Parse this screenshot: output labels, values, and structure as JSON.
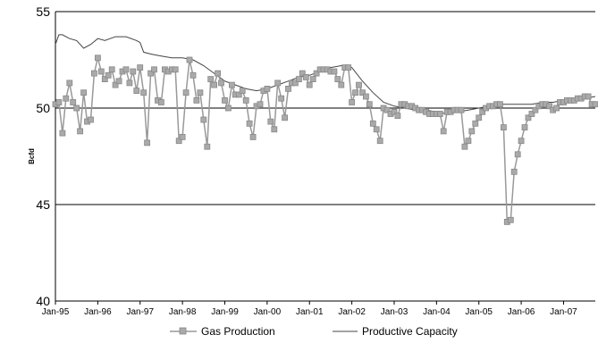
{
  "chart_data": {
    "type": "line",
    "title": "",
    "xlabel": "",
    "ylabel": "Bcfd",
    "ylim": [
      40,
      55
    ],
    "yticks": [
      40,
      45,
      50,
      55
    ],
    "xlim": [
      "1995-01",
      "2007-10"
    ],
    "xtick_labels": [
      "Jan-95",
      "Jan-96",
      "Jan-97",
      "Jan-98",
      "Jan-99",
      "Jan-00",
      "Jan-01",
      "Jan-02",
      "Jan-03",
      "Jan-04",
      "Jan-05",
      "Jan-06",
      "Jan-07"
    ],
    "gridlines_y": [
      45,
      50,
      55
    ],
    "legend_position": "bottom",
    "colors": {
      "production": "#999999",
      "capacity": "#444444",
      "grid": "#000000"
    },
    "series": [
      {
        "name": "Gas Production",
        "marker": "square",
        "x": [
          "1995-01",
          "1995-02",
          "1995-03",
          "1995-04",
          "1995-05",
          "1995-06",
          "1995-07",
          "1995-08",
          "1995-09",
          "1995-10",
          "1995-11",
          "1995-12",
          "1996-01",
          "1996-02",
          "1996-03",
          "1996-04",
          "1996-05",
          "1996-06",
          "1996-07",
          "1996-08",
          "1996-09",
          "1996-10",
          "1996-11",
          "1996-12",
          "1997-01",
          "1997-02",
          "1997-03",
          "1997-04",
          "1997-05",
          "1997-06",
          "1997-07",
          "1997-08",
          "1997-09",
          "1997-10",
          "1997-11",
          "1997-12",
          "1998-01",
          "1998-02",
          "1998-03",
          "1998-04",
          "1998-05",
          "1998-06",
          "1998-07",
          "1998-08",
          "1998-09",
          "1998-10",
          "1998-11",
          "1998-12",
          "1999-01",
          "1999-02",
          "1999-03",
          "1999-04",
          "1999-05",
          "1999-06",
          "1999-07",
          "1999-08",
          "1999-09",
          "1999-10",
          "1999-11",
          "1999-12",
          "2000-01",
          "2000-02",
          "2000-03",
          "2000-04",
          "2000-05",
          "2000-06",
          "2000-07",
          "2000-08",
          "2000-09",
          "2000-10",
          "2000-11",
          "2000-12",
          "2001-01",
          "2001-02",
          "2001-03",
          "2001-04",
          "2001-05",
          "2001-06",
          "2001-07",
          "2001-08",
          "2001-09",
          "2001-10",
          "2001-11",
          "2001-12",
          "2002-01",
          "2002-02",
          "2002-03",
          "2002-04",
          "2002-05",
          "2002-06",
          "2002-07",
          "2002-08",
          "2002-09",
          "2002-10",
          "2002-11",
          "2002-12",
          "2003-01",
          "2003-02",
          "2003-03",
          "2003-04",
          "2003-05",
          "2003-06",
          "2003-07",
          "2003-08",
          "2003-09",
          "2003-10",
          "2003-11",
          "2003-12",
          "2004-01",
          "2004-02",
          "2004-03",
          "2004-04",
          "2004-05",
          "2004-06",
          "2004-07",
          "2004-08",
          "2004-09",
          "2004-10",
          "2004-11",
          "2004-12",
          "2005-01",
          "2005-02",
          "2005-03",
          "2005-04",
          "2005-05",
          "2005-06",
          "2005-07",
          "2005-08",
          "2005-09",
          "2005-10",
          "2005-11",
          "2005-12",
          "2006-01",
          "2006-02",
          "2006-03",
          "2006-04",
          "2006-05",
          "2006-06",
          "2006-07",
          "2006-08",
          "2006-09",
          "2006-10",
          "2006-11",
          "2006-12",
          "2007-01",
          "2007-02",
          "2007-03",
          "2007-04",
          "2007-05",
          "2007-06",
          "2007-07",
          "2007-08",
          "2007-09",
          "2007-10"
        ],
        "values": [
          50.2,
          50.3,
          48.7,
          50.5,
          51.3,
          50.3,
          50.0,
          48.8,
          50.8,
          49.3,
          49.4,
          51.8,
          52.6,
          51.9,
          51.5,
          51.7,
          52.0,
          51.2,
          51.4,
          51.9,
          52.0,
          51.3,
          51.9,
          50.9,
          52.1,
          50.8,
          48.2,
          51.8,
          52.0,
          50.4,
          50.3,
          52.0,
          51.9,
          52.0,
          52.0,
          48.3,
          48.5,
          50.8,
          52.5,
          51.7,
          50.4,
          50.8,
          49.4,
          48.0,
          51.5,
          51.2,
          51.8,
          51.3,
          50.4,
          50.0,
          51.2,
          50.7,
          50.7,
          50.9,
          50.4,
          49.2,
          48.5,
          50.1,
          50.2,
          50.9,
          51.0,
          49.3,
          48.9,
          51.3,
          50.5,
          49.5,
          51.0,
          51.3,
          51.3,
          51.5,
          51.8,
          51.6,
          51.2,
          51.5,
          51.8,
          52.0,
          52.0,
          52.0,
          51.9,
          51.9,
          51.5,
          51.2,
          52.1,
          52.1,
          50.3,
          50.8,
          51.2,
          50.8,
          50.6,
          50.2,
          49.2,
          48.9,
          48.3,
          50.0,
          49.9,
          49.7,
          49.8,
          49.6,
          50.2,
          50.2,
          50.1,
          50.1,
          50.0,
          49.9,
          49.9,
          49.8,
          49.7,
          49.7,
          49.7,
          49.7,
          48.8,
          49.8,
          49.8,
          49.9,
          49.9,
          49.9,
          48.0,
          48.3,
          48.8,
          49.2,
          49.5,
          49.8,
          50.0,
          50.1,
          50.1,
          50.2,
          50.2,
          49.0,
          44.1,
          44.2,
          46.7,
          47.6,
          48.3,
          49.0,
          49.5,
          49.7,
          49.9,
          50.1,
          50.2,
          50.2,
          50.1,
          49.9,
          50.0,
          50.3,
          50.3,
          50.4,
          50.4,
          50.4,
          50.5,
          50.5,
          50.6,
          50.6,
          50.2,
          50.2
        ]
      },
      {
        "name": "Productive Capacity",
        "x": [
          "1995-01",
          "1995-02",
          "1995-03",
          "1995-05",
          "1995-07",
          "1995-09",
          "1995-11",
          "1996-01",
          "1996-03",
          "1996-06",
          "1996-09",
          "1996-12",
          "1997-01",
          "1997-02",
          "1997-04",
          "1997-07",
          "1997-10",
          "1998-01",
          "1998-04",
          "1998-07",
          "1998-10",
          "1999-01",
          "1999-04",
          "1999-07",
          "1999-10",
          "2000-01",
          "2000-04",
          "2000-07",
          "2000-10",
          "2001-01",
          "2001-04",
          "2001-07",
          "2001-10",
          "2002-01",
          "2002-04",
          "2002-07",
          "2002-10",
          "2003-01",
          "2003-04",
          "2003-07",
          "2003-10",
          "2004-01",
          "2004-04",
          "2004-07",
          "2004-10",
          "2005-01",
          "2005-04",
          "2005-07",
          "2005-10",
          "2006-01",
          "2006-04",
          "2006-07",
          "2006-10",
          "2007-01",
          "2007-04",
          "2007-07",
          "2007-10"
        ],
        "values": [
          53.3,
          53.8,
          53.8,
          53.6,
          53.5,
          53.1,
          53.3,
          53.6,
          53.5,
          53.7,
          53.7,
          53.5,
          53.4,
          52.9,
          52.8,
          52.7,
          52.6,
          52.6,
          52.5,
          52.2,
          51.8,
          51.4,
          51.2,
          51.0,
          50.9,
          51.0,
          51.2,
          51.4,
          51.6,
          51.7,
          51.9,
          52.1,
          52.2,
          52.1,
          51.4,
          50.8,
          50.3,
          50.1,
          50.0,
          49.9,
          49.9,
          49.8,
          49.7,
          49.8,
          49.9,
          50.0,
          50.1,
          50.2,
          50.2,
          50.2,
          50.2,
          50.3,
          50.3,
          50.4,
          50.4,
          50.5,
          50.6
        ]
      }
    ]
  }
}
